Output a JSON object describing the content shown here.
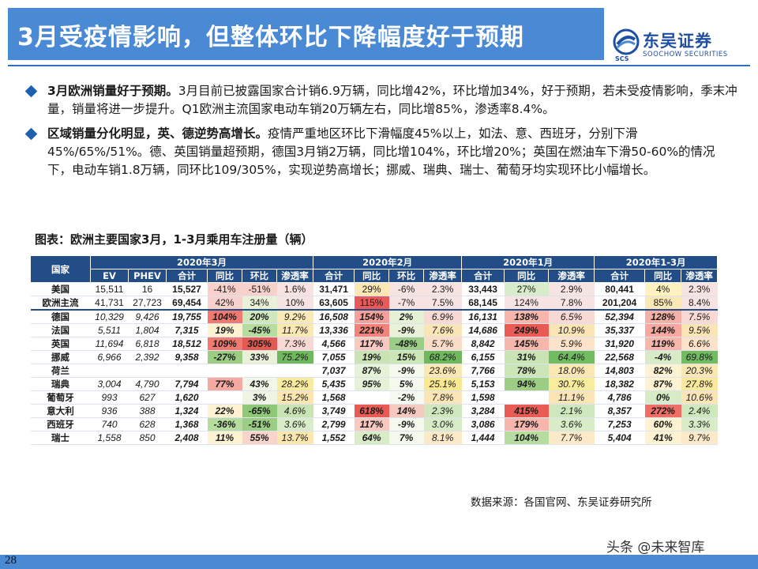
{
  "header": {
    "title": "3月受疫情影响，但整体环比下降幅度好于预期"
  },
  "logo": {
    "cn": "东吴证券",
    "en": "SOOCHOW SECURITIES",
    "abbr": "SCS"
  },
  "bullets": [
    {
      "lead": "3月欧洲销量好于预期。",
      "text": "3月目前已披露国家合计销6.9万辆，同比增42%，环比增加34%，好于预期，若未受疫情影响，季末冲量，销量将进一步提升。Q1欧洲主流国家电动车销20万辆左右，同比增85%，渗透率8.4%。"
    },
    {
      "lead": "区域销量分化明显，英、德逆势高增长。",
      "text": "疫情严重地区环比下滑幅度45%以上，如法、意、西班牙，分别下滑45%/65%/51%。德、英国销量超预期，德国3月销2万辆，同比增104%，环比增20%；英国在燃油车下滑50-60%的情况下，电动车销1.8万辆，同环比109/305%，实现逆势高增长；挪威、瑞典、瑞士、葡萄牙均实现环比小幅增长。"
    }
  ],
  "table_title": "图表：欧洲主要国家3月，1-3月乘用车注册量（辆）",
  "table": {
    "country_header": "国家",
    "groups": [
      "2020年3月",
      "2020年2月",
      "2020年1月",
      "2020年1-3月"
    ],
    "columns": [
      "EV",
      "PHEV",
      "合计",
      "同比",
      "环比",
      "渗透率",
      "合计",
      "同比",
      "环比",
      "渗透率",
      "合计",
      "同比",
      "渗透率",
      "合计",
      "同比",
      "渗透率"
    ],
    "rows": [
      [
        "美国",
        "15,511",
        "16",
        "15,527",
        "-41%",
        "-51%",
        "1.6%",
        "31,471",
        "29%",
        "-6%",
        "2.3%",
        "33,443",
        "27%",
        "2.9%",
        "80,441",
        "4%",
        "2.3%"
      ],
      [
        "欧洲主流",
        "41,731",
        "27,723",
        "69,454",
        "42%",
        "34%",
        "10%",
        "63,605",
        "115%",
        "-7%",
        "7.5%",
        "68,145",
        "124%",
        "7.8%",
        "201,204",
        "85%",
        "8.4%"
      ],
      [
        "德国",
        "10,329",
        "9,426",
        "19,755",
        "104%",
        "20%",
        "9.2%",
        "16,508",
        "154%",
        "2%",
        "6.9%",
        "16,131",
        "138%",
        "6.5%",
        "52,394",
        "128%",
        "7.5%"
      ],
      [
        "法国",
        "5,511",
        "1,804",
        "7,315",
        "19%",
        "-45%",
        "11.7%",
        "13,336",
        "221%",
        "-9%",
        "7.6%",
        "14,686",
        "249%",
        "10.9%",
        "35,337",
        "144%",
        "9.5%"
      ],
      [
        "英国",
        "11,694",
        "6,818",
        "18,512",
        "109%",
        "305%",
        "7.3%",
        "4,566",
        "117%",
        "-48%",
        "5.7%",
        "8,842",
        "145%",
        "5.9%",
        "31,920",
        "119%",
        "6.6%"
      ],
      [
        "挪威",
        "6,966",
        "2,392",
        "9,358",
        "-27%",
        "33%",
        "75.2%",
        "7,055",
        "19%",
        "15%",
        "68.2%",
        "6,155",
        "31%",
        "64.4%",
        "22,568",
        "-4%",
        "69.8%"
      ],
      [
        "荷兰",
        "",
        "",
        "",
        "",
        "",
        "",
        "7,037",
        "87%",
        "-9%",
        "23.6%",
        "7,766",
        "78%",
        "18.0%",
        "14,803",
        "82%",
        "20.3%"
      ],
      [
        "瑞典",
        "3,004",
        "4,790",
        "7,794",
        "77%",
        "43%",
        "28.2%",
        "5,435",
        "95%",
        "5%",
        "25.1%",
        "5,153",
        "94%",
        "30.7%",
        "18,382",
        "87%",
        "27.8%"
      ],
      [
        "葡萄牙",
        "993",
        "627",
        "1,620",
        "",
        "3%",
        "15.2%",
        "1,568",
        "",
        "-2%",
        "7.8%",
        "1,598",
        "",
        "11.1%",
        "4,786",
        "0%",
        "10.6%"
      ],
      [
        "意大利",
        "936",
        "388",
        "1,324",
        "22%",
        "-65%",
        "4.6%",
        "3,749",
        "618%",
        "14%",
        "2.3%",
        "3,284",
        "415%",
        "2.1%",
        "8,357",
        "272%",
        "2.4%"
      ],
      [
        "西班牙",
        "740",
        "628",
        "1,368",
        "-36%",
        "-51%",
        "3.6%",
        "2,799",
        "117%",
        "-9%",
        "3.0%",
        "3,086",
        "179%",
        "3.6%",
        "7,253",
        "60%",
        "3.3%"
      ],
      [
        "瑞士",
        "1,558",
        "850",
        "2,408",
        "11%",
        "55%",
        "13.7%",
        "1,552",
        "64%",
        "7%",
        "8.1%",
        "1,444",
        "104%",
        "7.7%",
        "5,404",
        "41%",
        "9.7%"
      ]
    ],
    "cell_colors": [
      [
        "",
        "",
        "",
        "",
        "#f8d0cc",
        "#f8d0cc",
        "#f8e3e3",
        "",
        "#fbe8b4",
        "#f8e3e3",
        "#f8e3e3",
        "",
        "#d8eccb",
        "#f8e3e3",
        "",
        "#fff2c0",
        "#f8e3e3"
      ],
      [
        "",
        "",
        "",
        "",
        "#f8d0cc",
        "#e9f2d8",
        "#f8e3e3",
        "",
        "#e95a5a",
        "#f8e3e3",
        "#f8e3e3",
        "",
        "#f8e3e3",
        "#f8e3e3",
        "",
        "#fbe8b4",
        "#f8e3e3"
      ],
      [
        "",
        "",
        "",
        "",
        "#f07a72",
        "#cfe7bd",
        "#fbe9b8",
        "",
        "#f5a09a",
        "#e6f0d5",
        "#f8d9d3",
        "",
        "#f7b6ac",
        "#f8d9d3",
        "",
        "#f5b0a7",
        "#f8d9d3"
      ],
      [
        "",
        "",
        "",
        "",
        "#fdf3d2",
        "#b6dca0",
        "#fbe7b2",
        "",
        "#f2837a",
        "#e9f2d8",
        "#fbe5b6",
        "",
        "#e85c55",
        "#fbe5b6",
        "",
        "#f7a89f",
        "#fbe5b6"
      ],
      [
        "",
        "",
        "",
        "",
        "#f07a72",
        "#e45a52",
        "#f8d8d2",
        "",
        "#f9c8c0",
        "#9ccd86",
        "#fbdcc6",
        "",
        "#f7b6ac",
        "#fbe2c8",
        "",
        "#f7b6ac",
        "#fbe2c8"
      ],
      [
        "",
        "",
        "",
        "",
        "#9dcd85",
        "#e9f2d8",
        "#6fb85e",
        "",
        "#c9e3b4",
        "#cde6b7",
        "#6fb85e",
        "",
        "#c9e3b4",
        "#73bb62",
        "",
        "#d6ebc6",
        "#73bb62"
      ],
      [
        "",
        "",
        "",
        "",
        "",
        "",
        "",
        "",
        "#e6f2d8",
        "#f4f8ed",
        "#fbe7b2",
        "",
        "#cde6b7",
        "#fbe7b2",
        "",
        "#fdf3d2",
        "#fbe7b2"
      ],
      [
        "",
        "",
        "",
        "",
        "#f4a9a1",
        "#f2f7ea",
        "#f8eb9f",
        "",
        "#e6f2d8",
        "#f4f8ed",
        "#fae890",
        "",
        "#9dcd85",
        "#f9ec9c",
        "",
        "#fdf3d2",
        "#f9e89d"
      ],
      [
        "",
        "",
        "",
        "",
        "",
        "#eef5e4",
        "#fbe6b0",
        "",
        "",
        "#f6f9f0",
        "#fbe5b6",
        "",
        "",
        "#fbe5b6",
        "",
        "#d6ebc6",
        "#fbe5b6"
      ],
      [
        "",
        "",
        "",
        "",
        "#fdf3d2",
        "#8fc879",
        "#c9e3b4",
        "",
        "#e85c55",
        "#f6c9c0",
        "#cfe7bd",
        "",
        "#e85c55",
        "#cfe7bd",
        "",
        "#ef6e66",
        "#cfe7bd"
      ],
      [
        "",
        "",
        "",
        "",
        "#b6dca0",
        "#9ccd86",
        "#d8ecc8",
        "",
        "#f9c8c0",
        "#f4f8ed",
        "#d6ebc6",
        "",
        "#f7b6ac",
        "#d8ecc8",
        "",
        "#fdf3d2",
        "#d8ecc8"
      ],
      [
        "",
        "",
        "",
        "",
        "#fdf3d2",
        "#f8d4cc",
        "#fbe6b0",
        "",
        "#d8ecc8",
        "#f4f8ed",
        "#fbe9c8",
        "",
        "#b6dca0",
        "#fbe9c8",
        "",
        "#fdf3d2",
        "#fbe9c8"
      ]
    ]
  },
  "source": "数据来源：各国官网、东吴证券研究所",
  "watermark": "头条 @未来智库",
  "page_number": "28"
}
